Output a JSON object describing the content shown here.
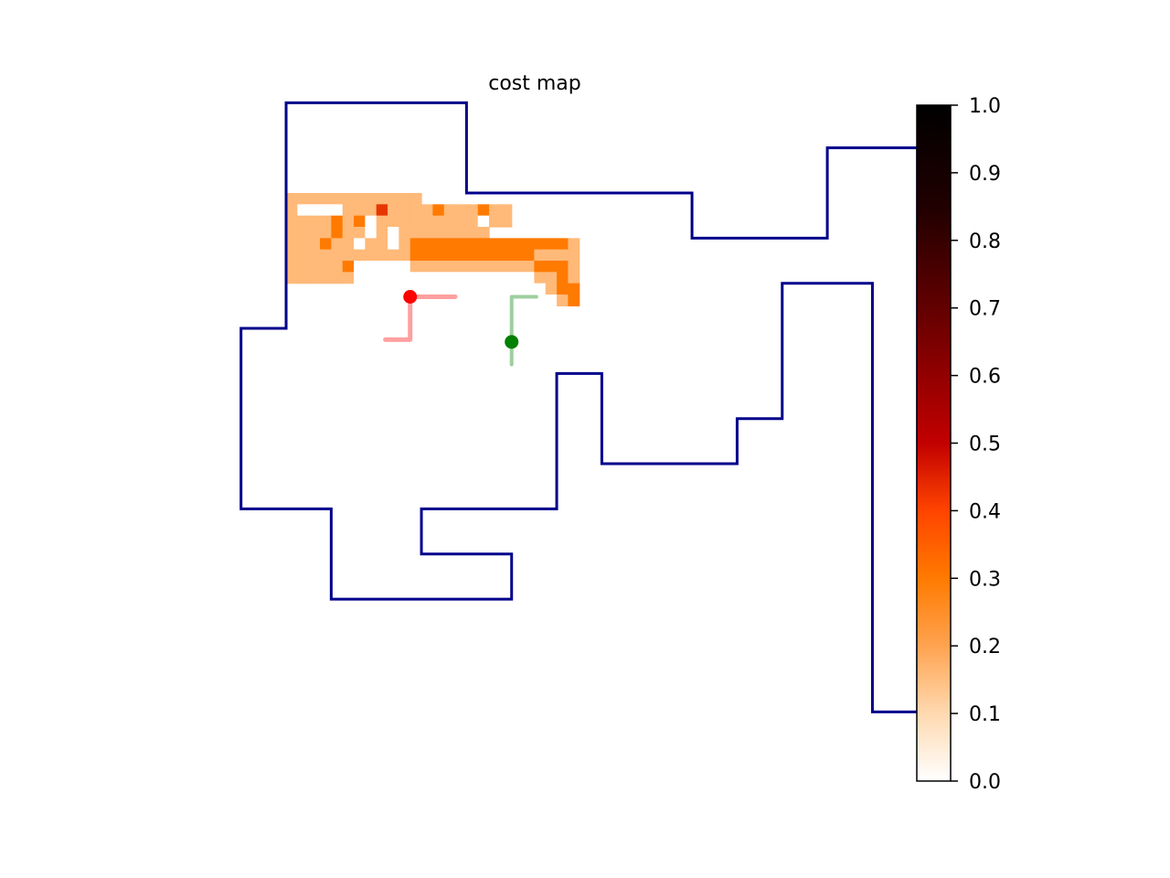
{
  "chart_data": {
    "type": "heatmap",
    "title": "cost map",
    "xlabel": "",
    "ylabel": "",
    "axes_visible": false,
    "grid": false,
    "colormap": "gist_heat_r",
    "cells": [
      [
        12,
        12,
        0.1
      ],
      [
        13,
        12,
        0.1
      ],
      [
        14,
        12,
        0.1
      ],
      [
        15,
        12,
        0.1
      ],
      [
        16,
        12,
        0.1
      ],
      [
        17,
        12,
        0.1
      ],
      [
        18,
        12,
        0.1
      ],
      [
        19,
        12,
        0.1
      ],
      [
        20,
        12,
        0.1
      ],
      [
        21,
        12,
        0.1
      ],
      [
        22,
        12,
        0.1
      ],
      [
        23,
        12,
        0.1
      ],
      [
        12,
        13,
        0.1
      ],
      [
        13,
        13,
        0.0
      ],
      [
        14,
        13,
        0.0
      ],
      [
        15,
        13,
        0.0
      ],
      [
        16,
        13,
        0.0
      ],
      [
        17,
        13,
        0.1
      ],
      [
        18,
        13,
        0.1
      ],
      [
        19,
        13,
        0.1
      ],
      [
        20,
        13,
        0.35
      ],
      [
        21,
        13,
        0.1
      ],
      [
        22,
        13,
        0.1
      ],
      [
        23,
        13,
        0.1
      ],
      [
        24,
        13,
        0.1
      ],
      [
        25,
        13,
        0.25
      ],
      [
        26,
        13,
        0.1
      ],
      [
        27,
        13,
        0.1
      ],
      [
        28,
        13,
        0.1
      ],
      [
        29,
        13,
        0.25
      ],
      [
        30,
        13,
        0.1
      ],
      [
        31,
        13,
        0.1
      ],
      [
        12,
        14,
        0.1
      ],
      [
        13,
        14,
        0.1
      ],
      [
        14,
        14,
        0.1
      ],
      [
        15,
        14,
        0.1
      ],
      [
        16,
        14,
        0.25
      ],
      [
        17,
        14,
        0.1
      ],
      [
        18,
        14,
        0.25
      ],
      [
        19,
        14,
        0.0
      ],
      [
        20,
        14,
        0.1
      ],
      [
        21,
        14,
        0.1
      ],
      [
        22,
        14,
        0.1
      ],
      [
        23,
        14,
        0.1
      ],
      [
        24,
        14,
        0.1
      ],
      [
        25,
        14,
        0.1
      ],
      [
        26,
        14,
        0.1
      ],
      [
        27,
        14,
        0.1
      ],
      [
        28,
        14,
        0.1
      ],
      [
        29,
        14,
        0.0
      ],
      [
        30,
        14,
        0.1
      ],
      [
        31,
        14,
        0.1
      ],
      [
        12,
        15,
        0.1
      ],
      [
        13,
        15,
        0.1
      ],
      [
        14,
        15,
        0.1
      ],
      [
        15,
        15,
        0.1
      ],
      [
        16,
        15,
        0.25
      ],
      [
        17,
        15,
        0.1
      ],
      [
        18,
        15,
        0.1
      ],
      [
        19,
        15,
        0.0
      ],
      [
        20,
        15,
        0.1
      ],
      [
        21,
        15,
        0.0
      ],
      [
        22,
        15,
        0.1
      ],
      [
        23,
        15,
        0.1
      ],
      [
        24,
        15,
        0.1
      ],
      [
        25,
        15,
        0.1
      ],
      [
        26,
        15,
        0.1
      ],
      [
        27,
        15,
        0.1
      ],
      [
        28,
        15,
        0.1
      ],
      [
        29,
        15,
        0.1
      ],
      [
        12,
        16,
        0.1
      ],
      [
        13,
        16,
        0.1
      ],
      [
        14,
        16,
        0.1
      ],
      [
        15,
        16,
        0.25
      ],
      [
        16,
        16,
        0.1
      ],
      [
        17,
        16,
        0.1
      ],
      [
        18,
        16,
        0.0
      ],
      [
        19,
        16,
        0.1
      ],
      [
        20,
        16,
        0.1
      ],
      [
        21,
        16,
        0.0
      ],
      [
        22,
        16,
        0.1
      ],
      [
        23,
        16,
        0.25
      ],
      [
        24,
        16,
        0.25
      ],
      [
        25,
        16,
        0.25
      ],
      [
        26,
        16,
        0.25
      ],
      [
        27,
        16,
        0.25
      ],
      [
        28,
        16,
        0.25
      ],
      [
        29,
        16,
        0.25
      ],
      [
        30,
        16,
        0.25
      ],
      [
        31,
        16,
        0.25
      ],
      [
        32,
        16,
        0.25
      ],
      [
        33,
        16,
        0.25
      ],
      [
        34,
        16,
        0.25
      ],
      [
        35,
        16,
        0.25
      ],
      [
        36,
        16,
        0.25
      ],
      [
        37,
        16,
        0.1
      ],
      [
        12,
        17,
        0.1
      ],
      [
        13,
        17,
        0.1
      ],
      [
        14,
        17,
        0.1
      ],
      [
        15,
        17,
        0.1
      ],
      [
        16,
        17,
        0.1
      ],
      [
        17,
        17,
        0.1
      ],
      [
        18,
        17,
        0.1
      ],
      [
        19,
        17,
        0.1
      ],
      [
        20,
        17,
        0.1
      ],
      [
        21,
        17,
        0.1
      ],
      [
        22,
        17,
        0.1
      ],
      [
        23,
        17,
        0.25
      ],
      [
        24,
        17,
        0.25
      ],
      [
        25,
        17,
        0.25
      ],
      [
        26,
        17,
        0.25
      ],
      [
        27,
        17,
        0.25
      ],
      [
        28,
        17,
        0.25
      ],
      [
        29,
        17,
        0.25
      ],
      [
        30,
        17,
        0.25
      ],
      [
        31,
        17,
        0.25
      ],
      [
        32,
        17,
        0.25
      ],
      [
        33,
        17,
        0.25
      ],
      [
        34,
        17,
        0.1
      ],
      [
        35,
        17,
        0.1
      ],
      [
        36,
        17,
        0.1
      ],
      [
        37,
        17,
        0.1
      ],
      [
        12,
        18,
        0.1
      ],
      [
        13,
        18,
        0.1
      ],
      [
        14,
        18,
        0.1
      ],
      [
        15,
        18,
        0.1
      ],
      [
        16,
        18,
        0.1
      ],
      [
        17,
        18,
        0.25
      ],
      [
        18,
        18,
        0.0
      ],
      [
        19,
        18,
        0.0
      ],
      [
        20,
        18,
        0.0
      ],
      [
        21,
        18,
        0.0
      ],
      [
        22,
        18,
        0.0
      ],
      [
        23,
        18,
        0.1
      ],
      [
        24,
        18,
        0.1
      ],
      [
        25,
        18,
        0.1
      ],
      [
        26,
        18,
        0.1
      ],
      [
        27,
        18,
        0.1
      ],
      [
        28,
        18,
        0.1
      ],
      [
        29,
        18,
        0.1
      ],
      [
        30,
        18,
        0.1
      ],
      [
        31,
        18,
        0.1
      ],
      [
        32,
        18,
        0.1
      ],
      [
        33,
        18,
        0.1
      ],
      [
        34,
        18,
        0.25
      ],
      [
        35,
        18,
        0.25
      ],
      [
        36,
        18,
        0.25
      ],
      [
        37,
        18,
        0.1
      ],
      [
        12,
        19,
        0.1
      ],
      [
        13,
        19,
        0.1
      ],
      [
        14,
        19,
        0.1
      ],
      [
        15,
        19,
        0.1
      ],
      [
        16,
        19,
        0.1
      ],
      [
        17,
        19,
        0.1
      ],
      [
        18,
        19,
        0.0
      ],
      [
        19,
        19,
        0.0
      ],
      [
        20,
        19,
        0.0
      ],
      [
        21,
        19,
        0.0
      ],
      [
        22,
        19,
        0.0
      ],
      [
        23,
        19,
        0.0
      ],
      [
        24,
        19,
        0.0
      ],
      [
        25,
        19,
        0.0
      ],
      [
        26,
        19,
        0.0
      ],
      [
        27,
        19,
        0.0
      ],
      [
        28,
        19,
        0.0
      ],
      [
        29,
        19,
        0.0
      ],
      [
        30,
        19,
        0.0
      ],
      [
        31,
        19,
        0.0
      ],
      [
        32,
        19,
        0.0
      ],
      [
        33,
        19,
        0.0
      ],
      [
        34,
        19,
        0.1
      ],
      [
        35,
        19,
        0.1
      ],
      [
        36,
        19,
        0.25
      ],
      [
        37,
        19,
        0.1
      ],
      [
        33,
        20,
        0.0
      ],
      [
        34,
        20,
        0.0
      ],
      [
        35,
        20,
        0.1
      ],
      [
        36,
        20,
        0.25
      ],
      [
        37,
        20,
        0.25
      ],
      [
        33,
        21,
        0.0
      ],
      [
        34,
        21,
        0.0
      ],
      [
        35,
        21,
        0.0
      ],
      [
        36,
        21,
        0.1
      ],
      [
        37,
        21,
        0.25
      ]
    ],
    "boundary": [
      [
        10,
        2
      ],
      [
        14,
        2
      ],
      [
        14,
        6
      ],
      [
        24,
        6
      ],
      [
        24,
        8
      ],
      [
        30,
        8
      ],
      [
        30,
        4
      ],
      [
        34,
        4
      ],
      [
        34,
        29
      ],
      [
        32,
        29
      ],
      [
        32,
        10
      ],
      [
        28,
        10
      ],
      [
        28,
        16
      ],
      [
        26,
        16
      ],
      [
        26,
        18
      ],
      [
        20,
        18
      ],
      [
        20,
        14
      ],
      [
        18,
        14
      ],
      [
        18,
        20
      ],
      [
        12,
        20
      ],
      [
        12,
        22
      ],
      [
        16,
        22
      ],
      [
        16,
        24
      ],
      [
        8,
        24
      ],
      [
        8,
        20
      ],
      [
        4,
        20
      ],
      [
        4,
        12
      ],
      [
        6,
        12
      ],
      [
        6,
        2
      ],
      [
        10,
        2
      ]
    ],
    "path_red": [
      [
        11.5,
        10.6
      ],
      [
        13.5,
        10.6
      ],
      [
        11.5,
        10.6
      ],
      [
        11.5,
        12.5
      ],
      [
        10.4,
        12.5
      ]
    ],
    "path_green": [
      [
        16.0,
        12.6
      ],
      [
        16.0,
        10.6
      ],
      [
        17.1,
        10.6
      ],
      [
        16.0,
        10.6
      ],
      [
        16.0,
        13.6
      ]
    ],
    "marker_red": [
      11.5,
      10.6
    ],
    "marker_green": [
      16.0,
      12.6
    ],
    "colorbar": {
      "min": 0.0,
      "max": 1.0,
      "ticks": [
        "0.0",
        "0.1",
        "0.2",
        "0.3",
        "0.4",
        "0.5",
        "0.6",
        "0.7",
        "0.8",
        "0.9",
        "1.0"
      ]
    },
    "colors": {
      "boundary": "#00008b",
      "path_red": "#ff8080",
      "path_green": "#7fbf7f",
      "marker_red": "#ff0000",
      "marker_green": "#008000"
    }
  }
}
